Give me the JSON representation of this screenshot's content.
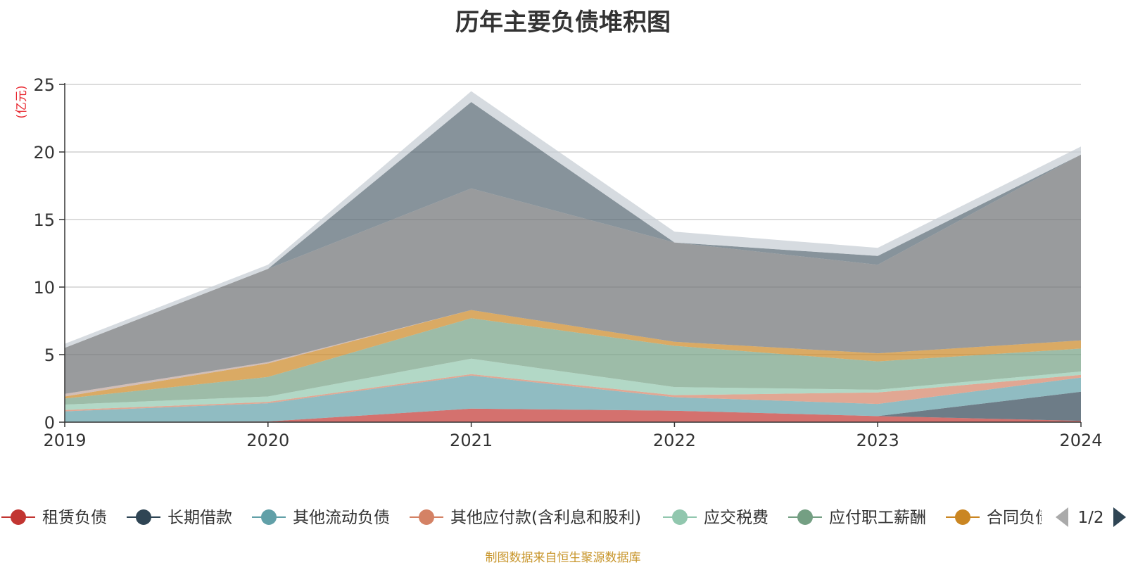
{
  "chart_data": {
    "type": "area",
    "stacked": true,
    "title": "历年主要负债堆积图",
    "unit_label": "(亿元)",
    "x": [
      "2019",
      "2020",
      "2021",
      "2022",
      "2023",
      "2024"
    ],
    "ylim": [
      0,
      25
    ],
    "yticks": [
      0,
      5,
      10,
      15,
      20,
      25
    ],
    "grid": true,
    "legend": {
      "placement": "bottom",
      "page": "1/2"
    },
    "series": [
      {
        "name": "租赁负债",
        "color": "#c23531",
        "values": [
          0.0,
          0.05,
          1.0,
          0.85,
          0.45,
          0.1
        ]
      },
      {
        "name": "长期借款",
        "color": "#2f4554",
        "values": [
          0.0,
          0.0,
          0.0,
          0.0,
          0.0,
          2.15
        ]
      },
      {
        "name": "其他流动负债",
        "color": "#61a0a8",
        "values": [
          0.8,
          1.35,
          2.45,
          1.0,
          0.9,
          1.05
        ]
      },
      {
        "name": "其他应付款(含利息和股利)",
        "color": "#d48265",
        "values": [
          0.1,
          0.1,
          0.1,
          0.15,
          0.85,
          0.2
        ]
      },
      {
        "name": "应交税费",
        "color": "#91c7ae",
        "values": [
          0.4,
          0.4,
          1.15,
          0.6,
          0.2,
          0.25
        ]
      },
      {
        "name": "应付职工薪酬",
        "color": "#749f83",
        "values": [
          0.45,
          1.45,
          3.0,
          3.05,
          2.1,
          1.7
        ]
      },
      {
        "name": "合同负债",
        "color": "#ca8622",
        "values": [
          0.15,
          1.0,
          0.6,
          0.3,
          0.6,
          0.6
        ]
      },
      {
        "name": "",
        "color": "#bda29a",
        "values": [
          0.2,
          0.1,
          0.0,
          0.0,
          0.0,
          0.0
        ]
      },
      {
        "name": "",
        "color": "#6e7074",
        "values": [
          3.4,
          6.9,
          9.0,
          7.35,
          6.55,
          13.75
        ]
      },
      {
        "name": "",
        "color": "#546570",
        "values": [
          0.0,
          0.0,
          6.4,
          0.0,
          0.65,
          0.0
        ]
      },
      {
        "name": "",
        "color": "#c4ccd3",
        "values": [
          0.3,
          0.3,
          0.8,
          0.8,
          0.6,
          0.6
        ]
      }
    ]
  },
  "footer": {
    "source": "制图数据来自恒生聚源数据库"
  }
}
